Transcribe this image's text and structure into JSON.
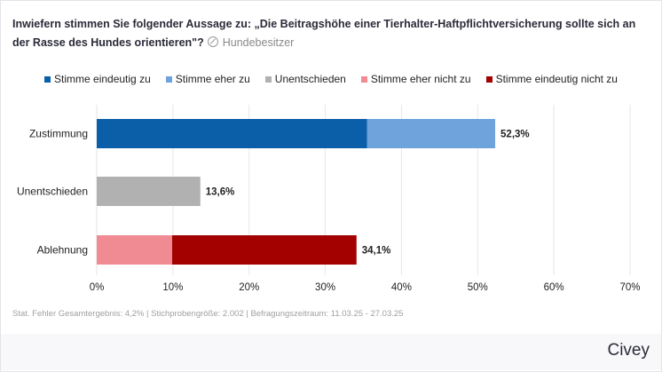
{
  "title": "Inwiefern stimmen Sie folgender Aussage zu: „Die Beitragshöhe einer Tierhalter-Haftpflichtversicherung sollte sich an der Rasse des Hundes orientieren\"?",
  "subtitle": "Hundebesitzer",
  "subtitle_icon": "no-entry-circle-icon",
  "footer": "Stat. Fehler Gesamtergebnis: 4,2% | Stichprobengröße: 2.002 | Befragungszeitraum: 11.03.25 - 27.03.25",
  "brand": "Civey",
  "chart_data": {
    "type": "bar",
    "orientation": "horizontal",
    "stacked": true,
    "categories": [
      "Zustimmung",
      "Unentschieden",
      "Ablehnung"
    ],
    "series": [
      {
        "name": "Stimme eindeutig zu",
        "color": "#0b5ea8",
        "values": [
          35.5,
          0,
          0
        ]
      },
      {
        "name": "Stimme eher zu",
        "color": "#6fa3dc",
        "values": [
          16.8,
          0,
          0
        ]
      },
      {
        "name": "Unentschieden",
        "color": "#b1b1b1",
        "values": [
          0,
          13.6,
          0
        ]
      },
      {
        "name": "Stimme eher nicht zu",
        "color": "#f08b93",
        "values": [
          0,
          0,
          9.9
        ]
      },
      {
        "name": "Stimme eindeutig nicht zu",
        "color": "#a30000",
        "values": [
          0,
          0,
          24.2
        ]
      }
    ],
    "totals": [
      "52,3%",
      "13,6%",
      "34,1%"
    ],
    "xlim": [
      0,
      70
    ],
    "xticks": [
      "0%",
      "10%",
      "20%",
      "30%",
      "40%",
      "50%",
      "60%",
      "70%"
    ],
    "grid": true,
    "legend_position": "top"
  }
}
